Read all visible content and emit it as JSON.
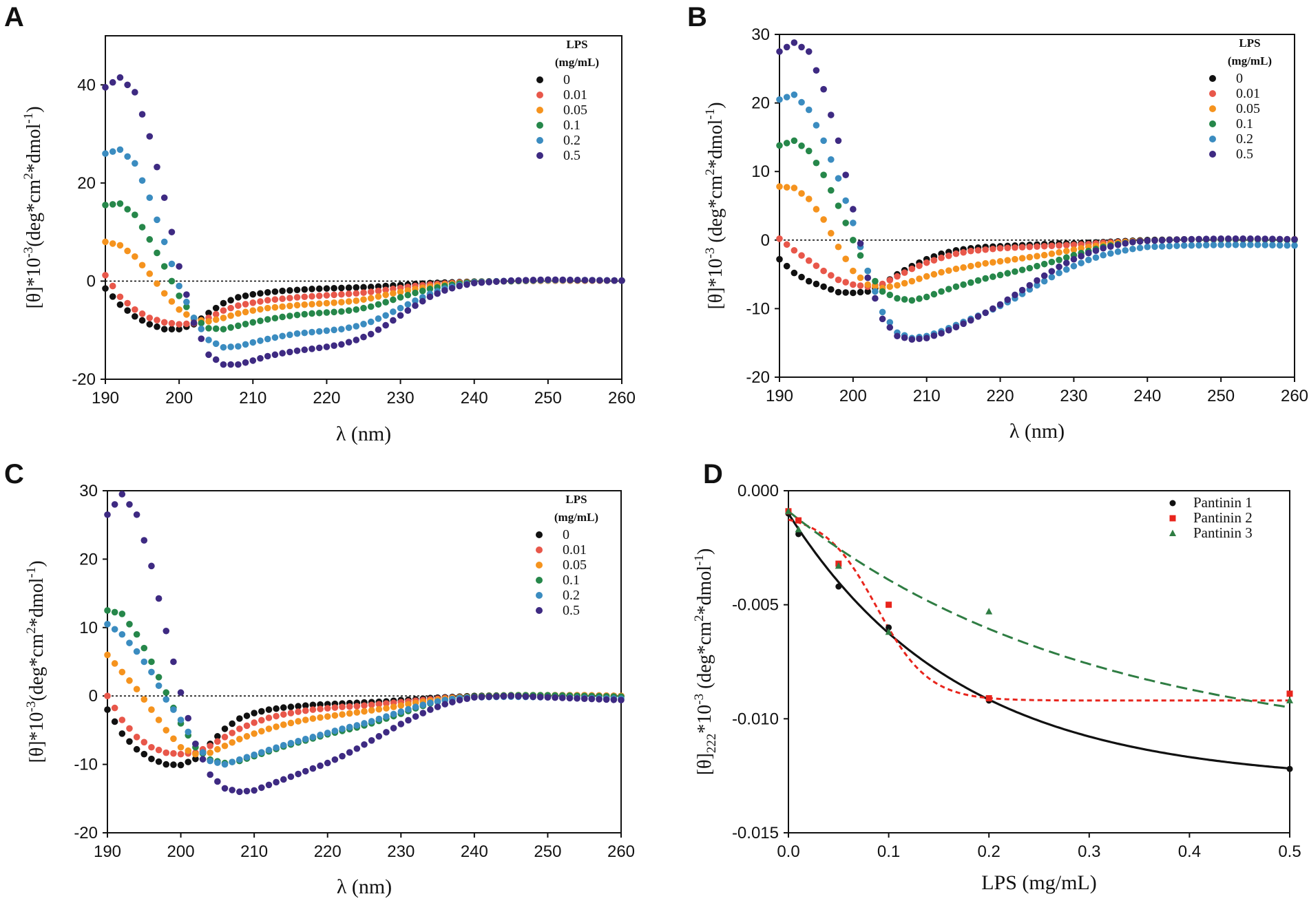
{
  "chart_data": [
    {
      "panel": "A",
      "type": "scatter",
      "xlabel": "λ (nm)",
      "ylabel_parts": [
        "[θ]*10",
        "-3",
        "(deg*cm",
        "2",
        "*dmol",
        "-1",
        ")"
      ],
      "xlim": [
        190,
        260
      ],
      "ylim": [
        -20,
        50
      ],
      "xticks": [
        190,
        200,
        210,
        220,
        230,
        240,
        250,
        260
      ],
      "yticks": [
        -20,
        0,
        20,
        40
      ],
      "legend": {
        "title": "LPS",
        "subtitle": "(mg/mL)",
        "position": "top-right"
      },
      "x": [
        190,
        192,
        194,
        196,
        198,
        200,
        202,
        204,
        206,
        208,
        210,
        212,
        214,
        216,
        218,
        220,
        222,
        224,
        226,
        228,
        230,
        232,
        234,
        236,
        238,
        240,
        245,
        250,
        255,
        260
      ],
      "series": [
        {
          "name": "0",
          "color": "#111111",
          "values": [
            -1.5,
            -4.8,
            -7.2,
            -8.8,
            -9.8,
            -9.8,
            -8.8,
            -6.5,
            -4.5,
            -3.3,
            -2.7,
            -2.3,
            -2.0,
            -1.8,
            -1.6,
            -1.5,
            -1.4,
            -1.3,
            -1.2,
            -1.0,
            -0.8,
            -0.6,
            -0.4,
            -0.3,
            -0.2,
            -0.1,
            0.0,
            0.1,
            0.1,
            0.1
          ]
        },
        {
          "name": "0.01",
          "color": "#e8574a",
          "values": [
            1.2,
            -3.2,
            -5.8,
            -7.5,
            -8.4,
            -8.8,
            -8.6,
            -7.5,
            -6.0,
            -5.0,
            -4.4,
            -3.9,
            -3.6,
            -3.3,
            -3.1,
            -2.9,
            -2.7,
            -2.5,
            -2.2,
            -1.8,
            -1.4,
            -1.0,
            -0.7,
            -0.5,
            -0.3,
            -0.2,
            0.0,
            0.1,
            0.1,
            0.1
          ]
        },
        {
          "name": "0.05",
          "color": "#f5931e",
          "values": [
            8.0,
            7.3,
            5.0,
            1.5,
            -2.5,
            -5.8,
            -7.8,
            -8.2,
            -7.5,
            -6.6,
            -6.0,
            -5.5,
            -5.2,
            -4.9,
            -4.7,
            -4.5,
            -4.3,
            -4.0,
            -3.5,
            -2.8,
            -2.2,
            -1.6,
            -1.1,
            -0.7,
            -0.4,
            -0.2,
            0.0,
            0.1,
            0.1,
            0.1
          ]
        },
        {
          "name": "0.1",
          "color": "#26874a",
          "values": [
            15.5,
            15.8,
            13.5,
            8.5,
            3.0,
            -3.0,
            -7.5,
            -9.6,
            -9.8,
            -9.1,
            -8.4,
            -7.8,
            -7.3,
            -6.9,
            -6.6,
            -6.4,
            -6.2,
            -5.8,
            -5.2,
            -4.3,
            -3.3,
            -2.4,
            -1.6,
            -1.0,
            -0.5,
            -0.2,
            0.0,
            0.2,
            0.2,
            0.1
          ]
        },
        {
          "name": "0.2",
          "color": "#3b8cc0",
          "values": [
            26.0,
            26.8,
            24.0,
            17.0,
            8.0,
            -1.0,
            -7.5,
            -12.0,
            -13.5,
            -13.3,
            -12.5,
            -11.8,
            -11.2,
            -10.7,
            -10.4,
            -10.1,
            -9.8,
            -9.2,
            -8.3,
            -7.0,
            -5.5,
            -4.0,
            -2.6,
            -1.5,
            -0.8,
            -0.3,
            0.1,
            0.2,
            0.2,
            0.1
          ]
        },
        {
          "name": "0.5",
          "color": "#3e2a82",
          "values": [
            39.5,
            41.5,
            38.5,
            29.5,
            17.0,
            3.0,
            -8.5,
            -15.0,
            -17.0,
            -17.0,
            -16.2,
            -15.3,
            -14.7,
            -14.2,
            -13.8,
            -13.4,
            -12.9,
            -12.0,
            -10.8,
            -9.0,
            -7.0,
            -5.0,
            -3.2,
            -1.9,
            -1.0,
            -0.4,
            0.1,
            0.3,
            0.2,
            0.1
          ]
        }
      ]
    },
    {
      "panel": "B",
      "type": "scatter",
      "xlabel": "λ (nm)",
      "ylabel_parts": [
        "[θ]*10",
        "-3",
        " (deg*cm",
        "2",
        "*dmol",
        "-1",
        ")"
      ],
      "xlim": [
        190,
        260
      ],
      "ylim": [
        -20,
        30
      ],
      "xticks": [
        190,
        200,
        210,
        220,
        230,
        240,
        250,
        260
      ],
      "yticks": [
        -20,
        -10,
        0,
        10,
        20,
        30
      ],
      "legend": {
        "title": "LPS",
        "subtitle": "(mg/mL)",
        "position": "top-right"
      },
      "x": [
        190,
        192,
        194,
        196,
        198,
        200,
        202,
        204,
        206,
        208,
        210,
        212,
        214,
        216,
        218,
        220,
        222,
        224,
        226,
        228,
        230,
        232,
        234,
        236,
        238,
        240,
        245,
        250,
        255,
        260
      ],
      "series": [
        {
          "name": "0",
          "color": "#111111",
          "values": [
            -2.8,
            -4.8,
            -6.0,
            -6.8,
            -7.6,
            -7.7,
            -7.5,
            -6.5,
            -5.0,
            -3.8,
            -2.8,
            -2.0,
            -1.5,
            -1.2,
            -1.0,
            -0.9,
            -0.8,
            -0.7,
            -0.6,
            -0.5,
            -0.5,
            -0.4,
            -0.3,
            -0.2,
            -0.1,
            0.0,
            0.1,
            0.1,
            0.1,
            0.1
          ]
        },
        {
          "name": "0.01",
          "color": "#e8574a",
          "values": [
            0.2,
            -1.5,
            -3.0,
            -4.5,
            -5.8,
            -6.5,
            -6.8,
            -6.4,
            -5.3,
            -4.2,
            -3.3,
            -2.6,
            -2.0,
            -1.6,
            -1.4,
            -1.2,
            -1.1,
            -1.0,
            -0.9,
            -0.8,
            -0.7,
            -0.6,
            -0.4,
            -0.3,
            -0.2,
            -0.1,
            0.1,
            0.1,
            0.1,
            0.1
          ]
        },
        {
          "name": "0.05",
          "color": "#f5931e",
          "values": [
            7.8,
            7.6,
            6.0,
            3.0,
            -1.0,
            -4.5,
            -6.5,
            -7.0,
            -6.6,
            -6.0,
            -5.3,
            -4.7,
            -4.2,
            -3.8,
            -3.4,
            -3.1,
            -2.8,
            -2.5,
            -2.2,
            -1.8,
            -1.4,
            -1.0,
            -0.7,
            -0.4,
            -0.2,
            -0.1,
            0.1,
            0.1,
            0.1,
            0.1
          ]
        },
        {
          "name": "0.1",
          "color": "#26874a",
          "values": [
            13.8,
            14.5,
            13.0,
            9.5,
            5.0,
            0.0,
            -4.5,
            -7.5,
            -8.5,
            -8.8,
            -8.3,
            -7.5,
            -6.8,
            -6.2,
            -5.6,
            -5.1,
            -4.6,
            -4.1,
            -3.5,
            -2.9,
            -2.2,
            -1.6,
            -1.0,
            -0.6,
            -0.3,
            -0.1,
            0.1,
            0.1,
            0.1,
            0.0
          ]
        },
        {
          "name": "0.2",
          "color": "#3b8cc0",
          "values": [
            20.5,
            21.2,
            19.0,
            14.5,
            9.0,
            2.5,
            -4.5,
            -10.5,
            -13.5,
            -14.3,
            -14.0,
            -13.3,
            -12.4,
            -11.5,
            -10.6,
            -9.6,
            -8.5,
            -7.2,
            -6.0,
            -4.8,
            -3.8,
            -2.9,
            -2.2,
            -1.7,
            -1.3,
            -1.0,
            -0.8,
            -0.7,
            -0.7,
            -0.8
          ]
        },
        {
          "name": "0.5",
          "color": "#3e2a82",
          "values": [
            27.5,
            28.8,
            27.5,
            22.0,
            14.5,
            4.5,
            -5.5,
            -11.5,
            -14.0,
            -14.5,
            -14.3,
            -13.6,
            -12.7,
            -11.7,
            -10.6,
            -9.4,
            -8.0,
            -6.6,
            -5.2,
            -3.9,
            -2.8,
            -1.9,
            -1.2,
            -0.7,
            -0.3,
            -0.1,
            0.1,
            0.2,
            0.2,
            0.1
          ]
        }
      ]
    },
    {
      "panel": "C",
      "type": "scatter",
      "xlabel": "λ (nm)",
      "ylabel_parts": [
        "[θ]*10",
        "-3",
        "(deg*cm",
        "2",
        "*dmol",
        "-1",
        ")"
      ],
      "xlim": [
        190,
        260
      ],
      "ylim": [
        -20,
        30
      ],
      "xticks": [
        190,
        200,
        210,
        220,
        230,
        240,
        250,
        260
      ],
      "yticks": [
        -20,
        -10,
        0,
        10,
        20,
        30
      ],
      "legend": {
        "title": "LPS",
        "subtitle": "(mg/mL)",
        "position": "top-right"
      },
      "x": [
        190,
        192,
        194,
        196,
        198,
        200,
        202,
        204,
        206,
        208,
        210,
        212,
        214,
        216,
        218,
        220,
        222,
        224,
        226,
        228,
        230,
        232,
        234,
        236,
        238,
        240,
        245,
        250,
        255,
        260
      ],
      "series": [
        {
          "name": "0",
          "color": "#111111",
          "values": [
            -2.0,
            -5.5,
            -7.8,
            -9.2,
            -10.0,
            -10.1,
            -9.2,
            -7.0,
            -4.8,
            -3.3,
            -2.5,
            -2.0,
            -1.7,
            -1.5,
            -1.3,
            -1.2,
            -1.1,
            -1.0,
            -0.9,
            -0.8,
            -0.6,
            -0.5,
            -0.3,
            -0.2,
            -0.1,
            0.0,
            0.1,
            0.1,
            0.1,
            0.0
          ]
        },
        {
          "name": "0.01",
          "color": "#e8574a",
          "values": [
            0.0,
            -3.5,
            -6.0,
            -7.5,
            -8.3,
            -8.5,
            -8.3,
            -7.3,
            -6.0,
            -4.8,
            -3.9,
            -3.2,
            -2.7,
            -2.3,
            -2.0,
            -1.8,
            -1.6,
            -1.5,
            -1.3,
            -1.1,
            -0.9,
            -0.7,
            -0.5,
            -0.3,
            -0.2,
            -0.1,
            0.1,
            0.1,
            0.1,
            0.0
          ]
        },
        {
          "name": "0.05",
          "color": "#f5931e",
          "values": [
            6.0,
            3.5,
            1.0,
            -2.0,
            -5.0,
            -7.5,
            -8.5,
            -8.3,
            -7.3,
            -6.3,
            -5.5,
            -4.8,
            -4.2,
            -3.7,
            -3.3,
            -3.0,
            -2.7,
            -2.4,
            -2.1,
            -1.8,
            -1.4,
            -1.0,
            -0.7,
            -0.4,
            -0.2,
            -0.1,
            0.1,
            0.1,
            0.1,
            0.0
          ]
        },
        {
          "name": "0.1",
          "color": "#26874a",
          "values": [
            12.5,
            12.0,
            9.0,
            5.0,
            0.5,
            -4.0,
            -7.5,
            -9.3,
            -9.8,
            -9.5,
            -8.8,
            -8.1,
            -7.4,
            -6.8,
            -6.2,
            -5.6,
            -5.1,
            -4.6,
            -4.0,
            -3.3,
            -2.6,
            -1.8,
            -1.1,
            -0.6,
            -0.3,
            -0.1,
            0.1,
            0.1,
            0.0,
            -0.1
          ]
        },
        {
          "name": "0.2",
          "color": "#3b8cc0",
          "values": [
            10.5,
            9.0,
            6.5,
            3.5,
            -0.5,
            -3.5,
            -7.0,
            -9.5,
            -10.0,
            -9.3,
            -8.6,
            -7.9,
            -7.2,
            -6.6,
            -6.0,
            -5.4,
            -4.8,
            -4.3,
            -3.7,
            -3.0,
            -2.3,
            -1.6,
            -1.0,
            -0.6,
            -0.3,
            -0.2,
            -0.1,
            -0.2,
            -0.3,
            -0.4
          ]
        },
        {
          "name": "0.5",
          "color": "#3e2a82",
          "values": [
            26.5,
            29.5,
            26.5,
            19.0,
            9.5,
            0.5,
            -7.0,
            -11.5,
            -13.5,
            -14.0,
            -13.8,
            -13.0,
            -12.2,
            -11.4,
            -10.6,
            -9.8,
            -8.8,
            -7.7,
            -6.5,
            -5.3,
            -4.1,
            -3.0,
            -2.0,
            -1.2,
            -0.6,
            -0.2,
            0.0,
            -0.2,
            -0.4,
            -0.6
          ]
        }
      ]
    },
    {
      "panel": "D",
      "type": "scatter",
      "xlabel": "LPS (mg/mL)",
      "ylabel_parts": [
        "[θ]",
        "222",
        "*10",
        "-3",
        " (deg*cm",
        "2",
        "*dmol",
        "-1",
        ")"
      ],
      "xlim": [
        0,
        0.5
      ],
      "ylim": [
        -0.015,
        0
      ],
      "xticks": [
        0.0,
        0.1,
        0.2,
        0.3,
        0.4,
        0.5
      ],
      "xtick_labels": [
        "0.0",
        "0.1",
        "0.2",
        "0.3",
        "0.4",
        "0.5"
      ],
      "yticks": [
        0,
        -0.005,
        -0.01,
        -0.015
      ],
      "ytick_labels": [
        "0.000",
        "-0.005",
        "-0.010",
        "-0.015"
      ],
      "legend": {
        "position": "top-right"
      },
      "x": [
        0,
        0.01,
        0.05,
        0.1,
        0.2,
        0.5
      ],
      "series": [
        {
          "name": "Pantinin 1",
          "color": "#111111",
          "marker": "circle",
          "line": "solid",
          "values": [
            -0.001,
            -0.0019,
            -0.0042,
            -0.006,
            -0.0092,
            -0.0122
          ]
        },
        {
          "name": "Pantinin 2",
          "color": "#e8251d",
          "marker": "square",
          "line": "dotted",
          "values": [
            -0.0009,
            -0.0013,
            -0.0032,
            -0.005,
            -0.0091,
            -0.0089
          ]
        },
        {
          "name": "Pantinin 3",
          "color": "#2f7d43",
          "marker": "triangle",
          "line": "dashed",
          "values": [
            -0.0009,
            -0.0017,
            -0.0033,
            -0.0062,
            -0.0053,
            -0.0092
          ]
        }
      ]
    }
  ]
}
